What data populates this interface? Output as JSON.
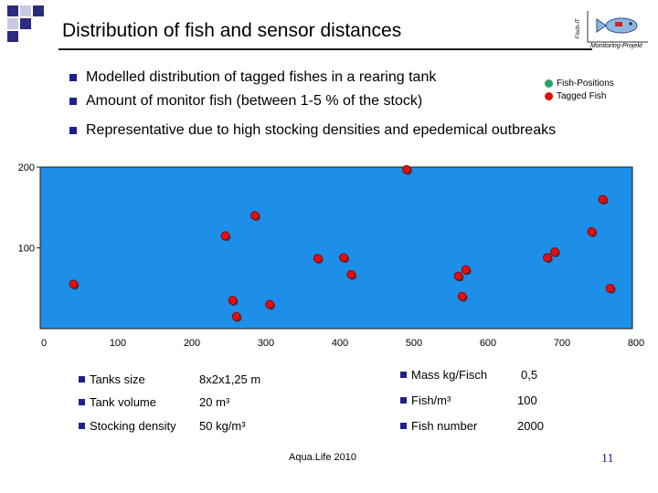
{
  "slide": {
    "title": "Distribution of fish and sensor distances",
    "logo_caption": "Monitoring-Projekt",
    "logo_side_text": "Fisch-IT",
    "bullets": [
      "Modelled distribution of tagged fishes in a rearing tank",
      "Amount of monitor fish (between 1-5 % of the stock)",
      "Representative due to high stocking densities and epedemical outbreaks"
    ],
    "footer": "Aqua.Life 2010",
    "page_number": "11"
  },
  "legend": {
    "positions_label": "Fish-Positions",
    "tagged_label": "Tagged Fish",
    "positions_color": "#2aa36b",
    "tagged_color": "#e01010"
  },
  "specs_left": [
    {
      "label": "Tanks size",
      "value": "8x2x1,25 m"
    },
    {
      "label": "Tank volume",
      "value": "20 m³"
    },
    {
      "label": "Stocking density",
      "value": "50 kg/m³"
    }
  ],
  "specs_right": [
    {
      "label": "Mass kg/Fisch",
      "value": "0,5"
    },
    {
      "label": "Fish/m³",
      "value": "100"
    },
    {
      "label": "Fish number",
      "value": "2000"
    }
  ],
  "chart_data": {
    "type": "scatter",
    "xlim": [
      0,
      800
    ],
    "ylim": [
      0,
      200
    ],
    "x_ticks": [
      0,
      100,
      200,
      300,
      400,
      500,
      600,
      700,
      800
    ],
    "y_ticks": [
      100,
      200
    ],
    "plot_background": "#1e8fe8",
    "marker_color": "#e01010",
    "grid": false,
    "series": [
      {
        "points": [
          [
            45,
            55
          ],
          [
            290,
            140
          ],
          [
            250,
            115
          ],
          [
            260,
            35
          ],
          [
            265,
            15
          ],
          [
            310,
            30
          ],
          [
            375,
            87
          ],
          [
            410,
            88
          ],
          [
            420,
            67
          ],
          [
            495,
            197
          ],
          [
            565,
            65
          ],
          [
            570,
            40
          ],
          [
            575,
            73
          ],
          [
            685,
            88
          ],
          [
            695,
            95
          ],
          [
            745,
            120
          ],
          [
            760,
            160
          ],
          [
            770,
            50
          ]
        ]
      }
    ]
  }
}
